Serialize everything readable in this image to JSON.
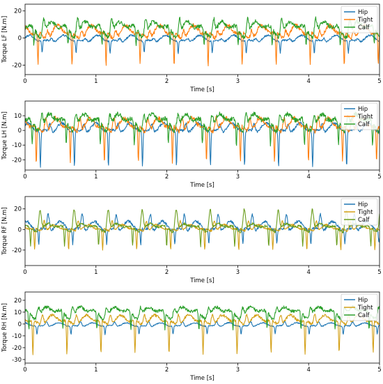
{
  "chart_data": [
    {
      "type": "line",
      "ylabel": "Torque LF [N.m]",
      "xlabel": "Time [s]",
      "xlim": [
        0,
        5
      ],
      "ylim": [
        -27,
        25
      ],
      "xticks": [
        "0",
        "1",
        "2",
        "3",
        "4",
        "5"
      ],
      "yticks": [
        "-20",
        "0",
        "20"
      ],
      "ytick_values": [
        -20,
        0,
        20
      ],
      "legend_position": "top-right",
      "gait_period_s": 0.48,
      "series": [
        {
          "name": "Hip",
          "color": "#1f77b4",
          "mean": -1,
          "amplitude": 3,
          "dip": -10,
          "peak": 2
        },
        {
          "name": "Tight",
          "color": "#ff7f0e",
          "mean": 4,
          "amplitude": 6,
          "dip": -20,
          "peak": 12
        },
        {
          "name": "Calf",
          "color": "#2ca02c",
          "mean": 7,
          "amplitude": 7,
          "dip": -5,
          "peak": 22
        }
      ]
    },
    {
      "type": "line",
      "ylabel": "Torque LH [N.m]",
      "xlabel": "Time [s]",
      "xlim": [
        0,
        5
      ],
      "ylim": [
        -27,
        20
      ],
      "xticks": [
        "0",
        "1",
        "2",
        "3",
        "4",
        "5"
      ],
      "yticks": [
        "-20",
        "-10",
        "0",
        "10"
      ],
      "ytick_values": [
        -20,
        -10,
        0,
        10
      ],
      "legend_position": "top-right",
      "gait_period_s": 0.48,
      "series": [
        {
          "name": "Hip",
          "color": "#1f77b4",
          "mean": 1,
          "amplitude": 4,
          "dip": -23,
          "peak": 8
        },
        {
          "name": "Tight",
          "color": "#ff7f0e",
          "mean": 3,
          "amplitude": 6,
          "dip": -22,
          "peak": 16
        },
        {
          "name": "Calf",
          "color": "#2ca02c",
          "mean": 6,
          "amplitude": 7,
          "dip": -10,
          "peak": 18
        }
      ]
    },
    {
      "type": "line",
      "ylabel": "Torque RF [N.m]",
      "xlabel": "Time [s]",
      "xlim": [
        0,
        5
      ],
      "ylim": [
        -35,
        32
      ],
      "xticks": [
        "0",
        "1",
        "2",
        "3",
        "4",
        "5"
      ],
      "yticks": [
        "-20",
        "0",
        "20"
      ],
      "ytick_values": [
        -20,
        0,
        20
      ],
      "legend_position": "top-right",
      "gait_period_s": 0.48,
      "series": [
        {
          "name": "Hip",
          "color": "#1f77b4",
          "mean": 2,
          "amplitude": 6,
          "dip": -12,
          "peak": 22
        },
        {
          "name": "Tight",
          "color": "#d4a017",
          "mean": 1,
          "amplitude": 4,
          "dip": -20,
          "peak": 14
        },
        {
          "name": "Calf",
          "color": "#6b9e1f",
          "mean": 2,
          "amplitude": 5,
          "dip": -16,
          "peak": 28
        }
      ]
    },
    {
      "type": "line",
      "ylabel": "Torque RH [N.m]",
      "xlabel": "Time [s]",
      "xlim": [
        0,
        5
      ],
      "ylim": [
        -33,
        27
      ],
      "xticks": [
        "0",
        "1",
        "2",
        "3",
        "4",
        "5"
      ],
      "yticks": [
        "-30",
        "-20",
        "-10",
        "0",
        "10",
        "20"
      ],
      "ytick_values": [
        -30,
        -20,
        -10,
        0,
        10,
        20
      ],
      "legend_position": "top-right",
      "gait_period_s": 0.48,
      "series": [
        {
          "name": "Hip",
          "color": "#1f77b4",
          "mean": -1,
          "amplitude": 2,
          "dip": -8,
          "peak": 4
        },
        {
          "name": "Tight",
          "color": "#d4a017",
          "mean": 3,
          "amplitude": 5,
          "dip": -25,
          "peak": 14
        },
        {
          "name": "Calf",
          "color": "#2ca02c",
          "mean": 10,
          "amplitude": 6,
          "dip": -4,
          "peak": 20
        }
      ]
    }
  ]
}
